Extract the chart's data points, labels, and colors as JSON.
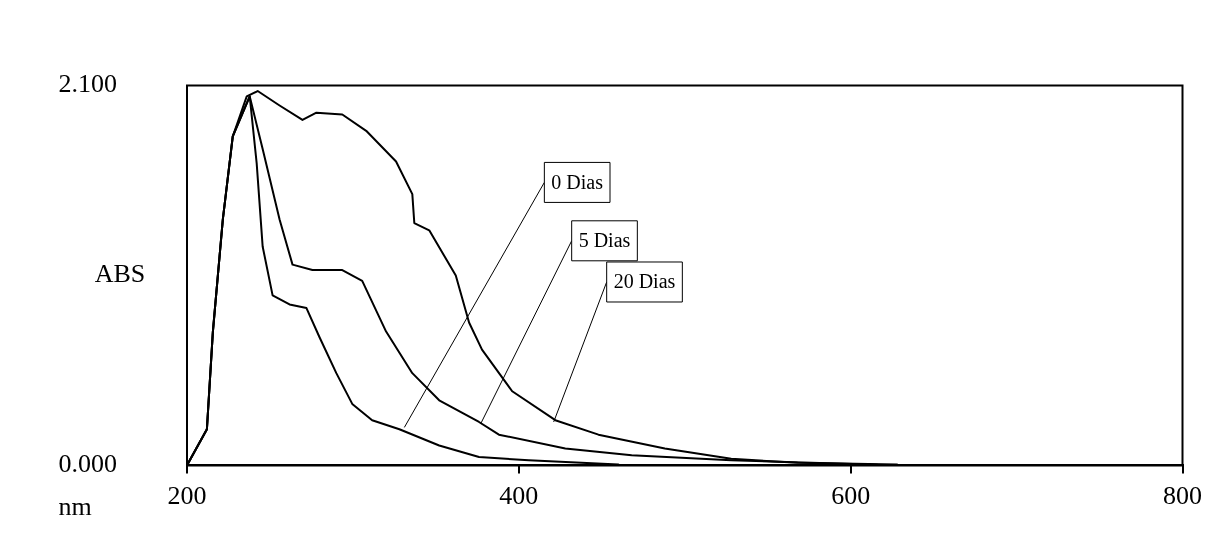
{
  "chart_data": {
    "type": "line",
    "xlabel": "nm",
    "ylabel": "ABS",
    "xlim": [
      200,
      800
    ],
    "xticks": [
      200,
      400,
      600,
      800
    ],
    "ylim": [
      0,
      2.1
    ],
    "yticks": [
      {
        "value": 0,
        "label": "0.000"
      },
      {
        "value": 2.1,
        "label": "2.100"
      }
    ],
    "marker": "none",
    "line_style": "solid",
    "series": [
      {
        "color": "#000000",
        "x": [
          200.6,
          212,
          215.6,
          221.6,
          227.6,
          237.8,
          242,
          245.6,
          251.6,
          261.8,
          272,
          279.8,
          290,
          299.6,
          311.6,
          328,
          352,
          376,
          406,
          460
        ],
        "values": [
          0.01,
          0.2,
          0.74,
          1.36,
          1.82,
          2.04,
          1.67,
          1.21,
          0.94,
          0.89,
          0.87,
          0.71,
          0.51,
          0.34,
          0.25,
          0.2,
          0.11,
          0.046,
          0.028,
          0.005
        ]
      },
      {
        "color": "#000000",
        "x": [
          200.6,
          212,
          215.6,
          221.6,
          227.6,
          237.8,
          245.6,
          255.8,
          263.6,
          275.6,
          293.6,
          305.6,
          320,
          335.8,
          352,
          376,
          388,
          428,
          468,
          528,
          616
        ],
        "values": [
          0.01,
          0.2,
          0.74,
          1.36,
          1.82,
          2.04,
          1.75,
          1.36,
          1.11,
          1.08,
          1.08,
          1.02,
          0.74,
          0.51,
          0.36,
          0.24,
          0.17,
          0.093,
          0.056,
          0.028,
          0.004
        ]
      },
      {
        "color": "#000000",
        "x": [
          200.6,
          212,
          215.6,
          221.6,
          227.6,
          236,
          242.6,
          255.8,
          269.6,
          278,
          293.6,
          308,
          326,
          335.8,
          337,
          346,
          362,
          370,
          377.8,
          396,
          422,
          448,
          488,
          528,
          568,
          628
        ],
        "values": [
          0.01,
          0.2,
          0.74,
          1.36,
          1.82,
          2.04,
          2.07,
          1.99,
          1.91,
          1.95,
          1.94,
          1.85,
          1.68,
          1.5,
          1.34,
          1.3,
          1.05,
          0.79,
          0.64,
          0.41,
          0.25,
          0.17,
          0.093,
          0.037,
          0.014,
          0.005
        ]
      }
    ],
    "annotations": [
      {
        "text": "0 Dias",
        "x": 331,
        "y": 0.21
      },
      {
        "text": "5 Dias",
        "x": 377,
        "y": 0.23
      },
      {
        "text": "20 Dias",
        "x": 421,
        "y": 0.24
      }
    ]
  }
}
